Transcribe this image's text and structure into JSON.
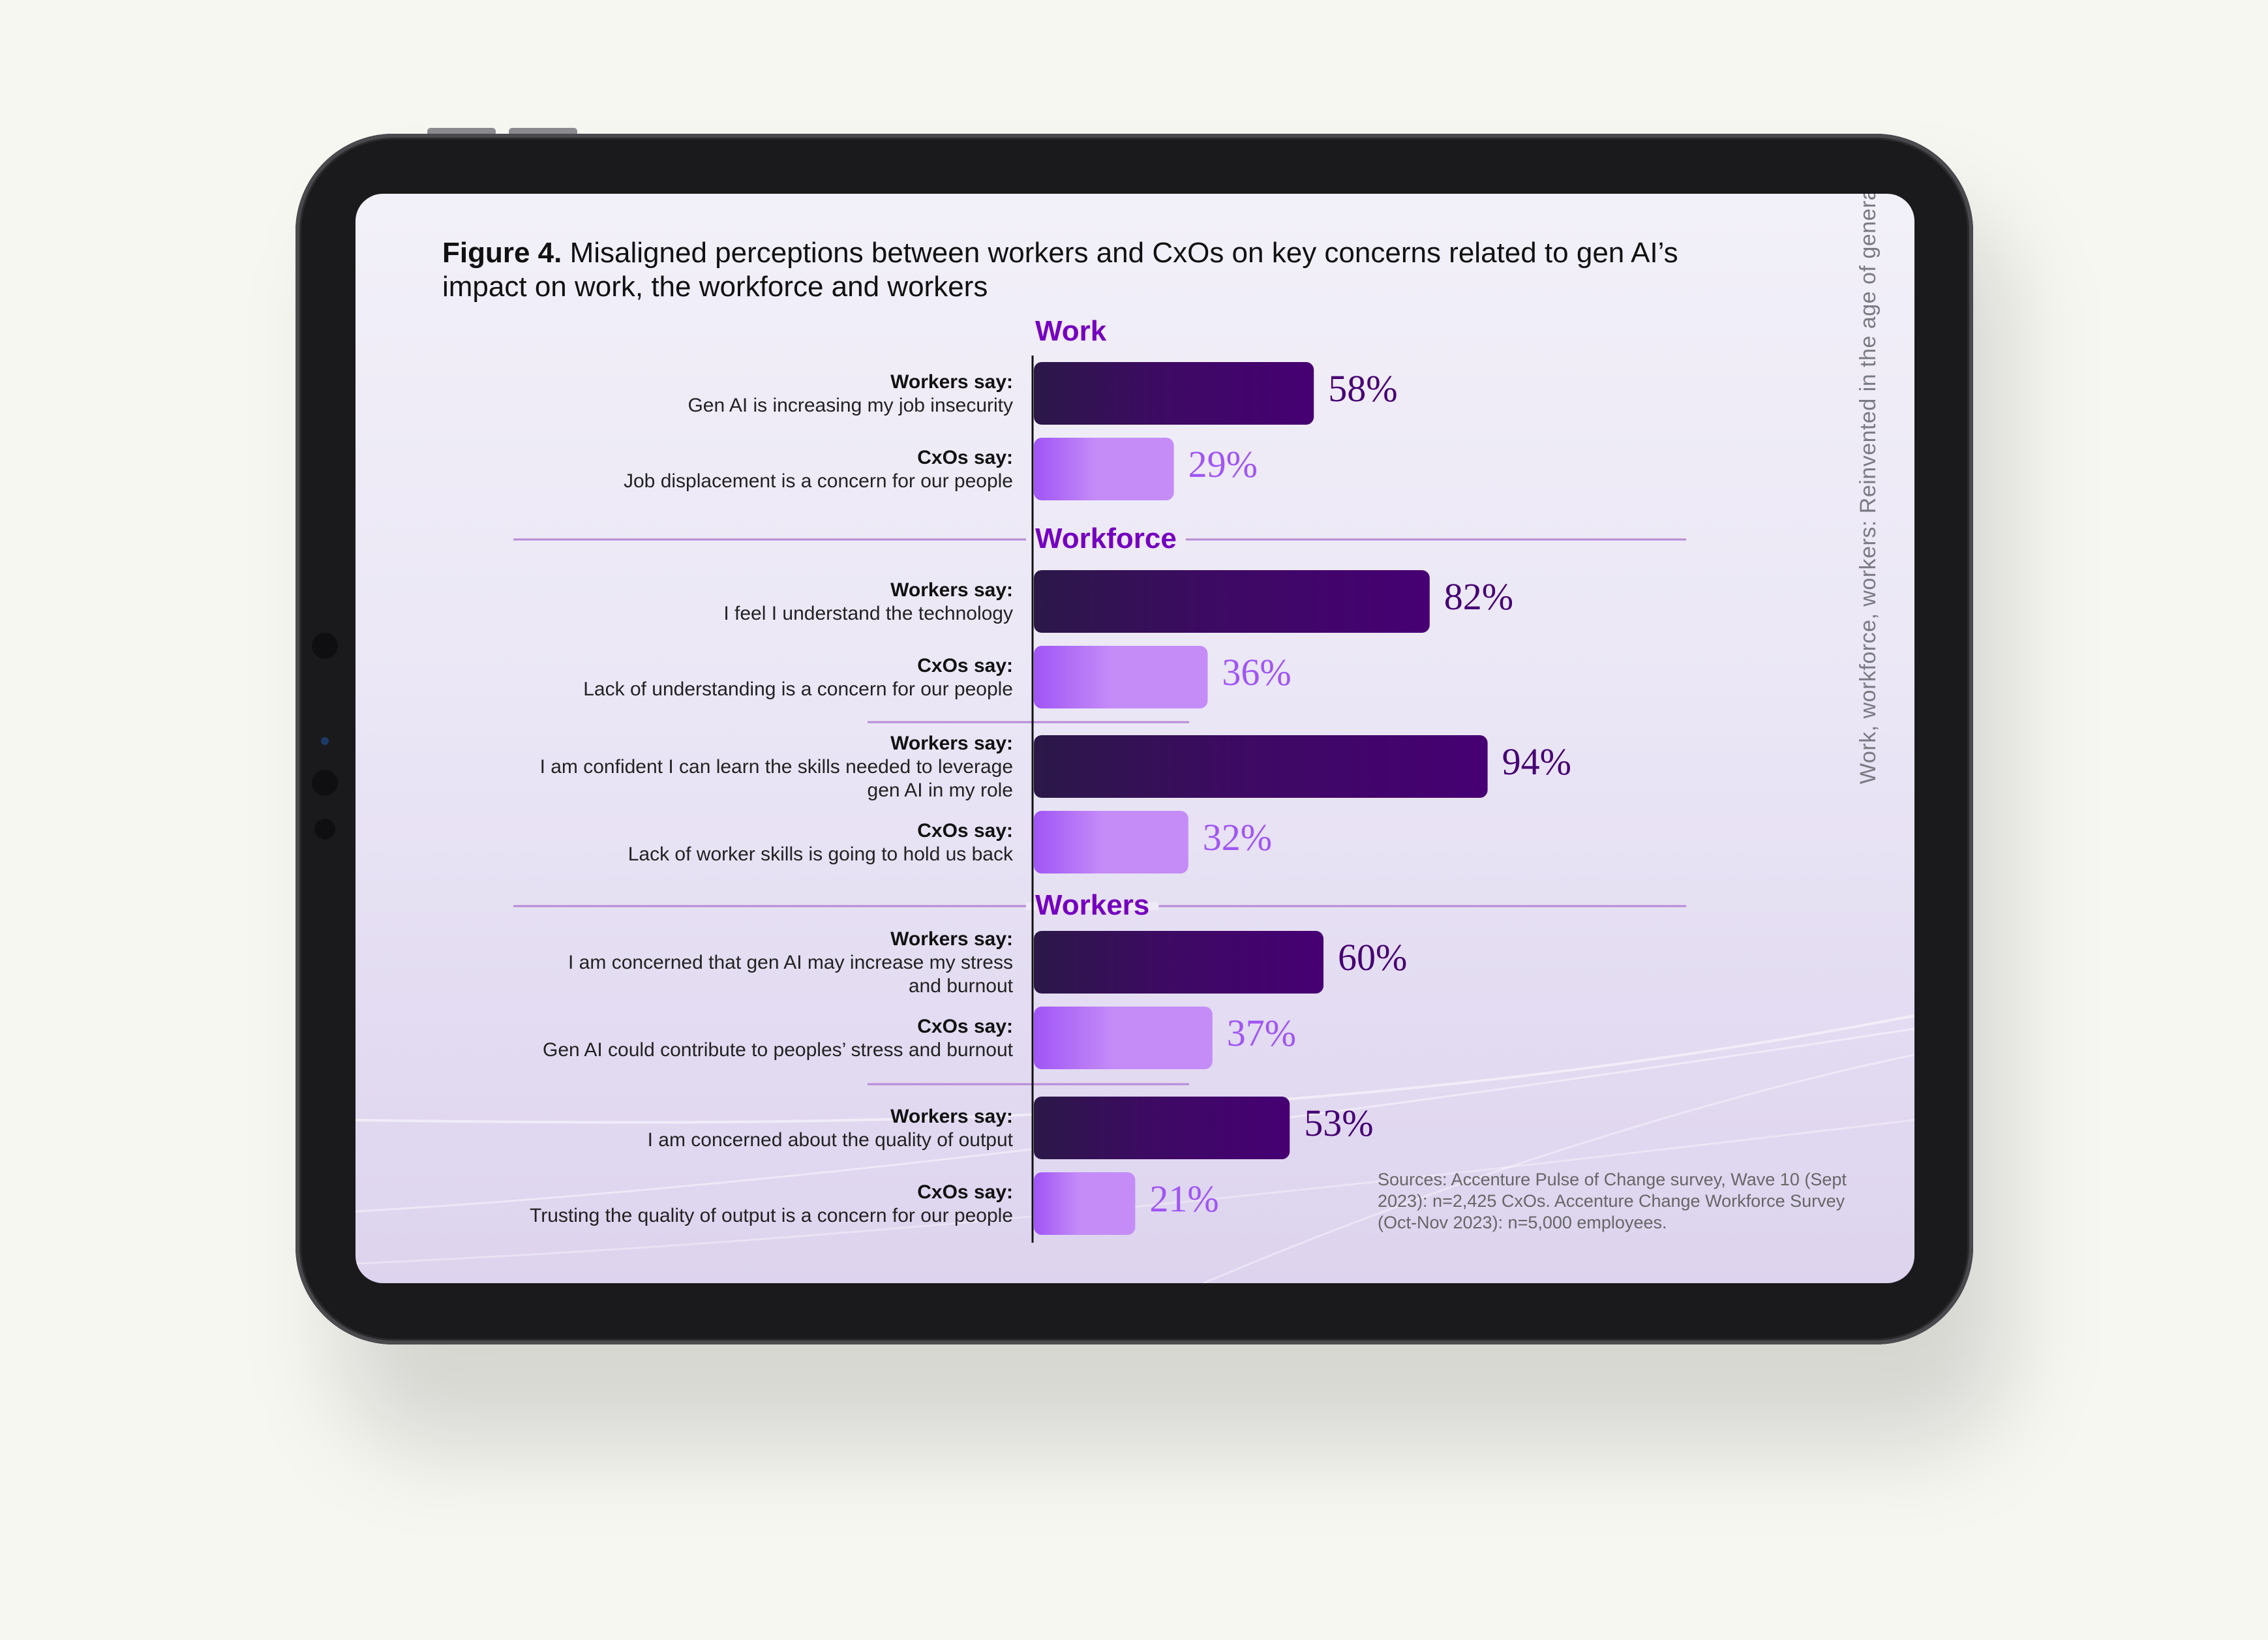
{
  "figure": {
    "label": "Figure 4.",
    "title": "Misaligned perceptions between workers and CxOs on key concerns related to gen AI’s impact on work, the workforce and workers"
  },
  "side_text": "Work, workforce, workers: Reinvented in the age of generativ",
  "sources": "Sources: Accenture Pulse of Change survey, Wave 10 (Sept 2023): n=2,425 CxOs. Accenture Change Workforce Survey (Oct-Nov 2023): n=5,000 employees.",
  "colors": {
    "worker_bar_dark": "#2b1848",
    "worker_bar_light": "#460073",
    "cxo_bar_dark": "#a055f5",
    "cxo_bar_light": "#c58cf8",
    "worker_value": "#460073",
    "cxo_value": "#a055f5",
    "section_title": "#7500c0"
  },
  "chart_data": {
    "type": "bar",
    "orientation": "horizontal",
    "value_range": [
      0,
      100
    ],
    "unit": "%",
    "sections": [
      {
        "title": "Work",
        "pairs": [
          {
            "worker": {
              "who": "Workers say:",
              "lines": [
                "Gen AI is increasing my job insecurity"
              ],
              "value": 58,
              "label": "58%"
            },
            "cxo": {
              "who": "CxOs say:",
              "lines": [
                "Job displacement is a concern for our people"
              ],
              "value": 29,
              "label": "29%"
            }
          }
        ]
      },
      {
        "title": "Workforce",
        "pairs": [
          {
            "worker": {
              "who": "Workers say:",
              "lines": [
                "I feel I understand the technology"
              ],
              "value": 82,
              "label": "82%"
            },
            "cxo": {
              "who": "CxOs say:",
              "lines": [
                "Lack of understanding is a concern for our people"
              ],
              "value": 36,
              "label": "36%"
            }
          },
          {
            "worker": {
              "who": "Workers say:",
              "lines": [
                "I am confident I can learn the skills needed to leverage",
                "gen AI in my role"
              ],
              "value": 94,
              "label": "94%"
            },
            "cxo": {
              "who": "CxOs say:",
              "lines": [
                "Lack of worker skills is going to hold us back"
              ],
              "value": 32,
              "label": "32%"
            }
          }
        ]
      },
      {
        "title": "Workers",
        "pairs": [
          {
            "worker": {
              "who": "Workers say:",
              "lines": [
                "I am concerned that gen AI may increase my stress",
                "and burnout"
              ],
              "value": 60,
              "label": "60%"
            },
            "cxo": {
              "who": "CxOs say:",
              "lines": [
                "Gen AI could contribute to peoples’ stress and burnout"
              ],
              "value": 37,
              "label": "37%"
            }
          },
          {
            "worker": {
              "who": "Workers say:",
              "lines": [
                "I am concerned about the quality of output"
              ],
              "value": 53,
              "label": "53%"
            },
            "cxo": {
              "who": "CxOs say:",
              "lines": [
                "Trusting the quality of output is a concern for our people"
              ],
              "value": 21,
              "label": "21%"
            }
          }
        ]
      }
    ]
  }
}
